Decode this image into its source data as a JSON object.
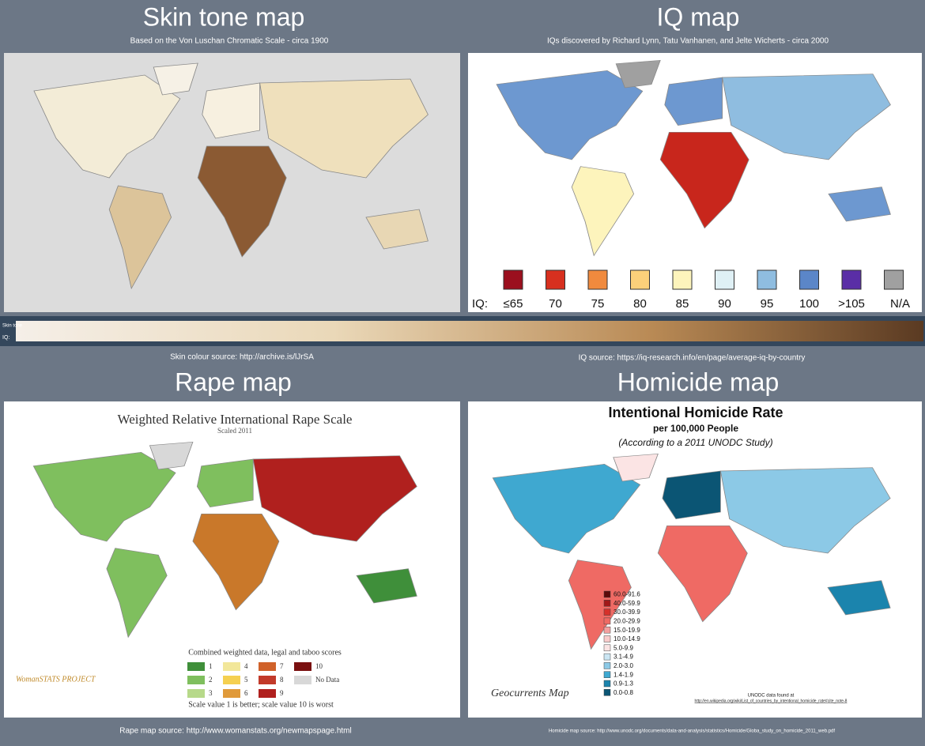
{
  "panels": [
    {
      "title": "Skin tone map",
      "subtitle": "Based on the Von Luschan Chromatic Scale - circa 1900",
      "source": "Skin colour source: http://archive.is/lJrSA"
    },
    {
      "title": "IQ map",
      "subtitle": "IQs discovered by Richard Lynn, Tatu Vanhanen, and Jelte Wicherts - circa 2000",
      "source": "IQ source:  https://iq-research.info/en/page/average-iq-by-country"
    },
    {
      "title": "Rape map",
      "source": "Rape map source: http://www.womanstats.org/newmapspage.html"
    },
    {
      "title": "Homicide map",
      "source": "Homicide map source: http://www.unodc.org/documents/data-and-analysis/statistics/Homicide/Globa_study_on_homicide_2011_web.pdf"
    }
  ],
  "strip": {
    "labels": [
      "Skin tone",
      "IQ:"
    ]
  },
  "iq_legend": {
    "prefix": "IQ:",
    "items": [
      {
        "label": "≤65",
        "color": "#9b0f1e"
      },
      {
        "label": "70",
        "color": "#d7301f"
      },
      {
        "label": "75",
        "color": "#f08a3e"
      },
      {
        "label": "80",
        "color": "#fbd07a"
      },
      {
        "label": "85",
        "color": "#fdf4bc"
      },
      {
        "label": "90",
        "color": "#dff0f5"
      },
      {
        "label": "95",
        "color": "#8fbde0"
      },
      {
        "label": "100",
        "color": "#5b86c8"
      },
      {
        "label": ">105",
        "color": "#5a2ea6"
      },
      {
        "label": "N/A",
        "color": "#a0a0a0"
      }
    ]
  },
  "rape_map": {
    "title": "Weighted Relative International Rape Scale",
    "subtitle": "Scaled 2011",
    "legend_title": "Combined weighted data, legal and taboo scores",
    "items": [
      {
        "label": "1",
        "color": "#3f8f3a"
      },
      {
        "label": "2",
        "color": "#7fbf5e"
      },
      {
        "label": "3",
        "color": "#b7d98a"
      },
      {
        "label": "4",
        "color": "#f2e79a"
      },
      {
        "label": "5",
        "color": "#f5d050"
      },
      {
        "label": "6",
        "color": "#e09a3a"
      },
      {
        "label": "7",
        "color": "#d0622a"
      },
      {
        "label": "8",
        "color": "#c23a2a"
      },
      {
        "label": "9",
        "color": "#b0201e"
      },
      {
        "label": "10",
        "color": "#7a1010"
      },
      {
        "label": "No Data",
        "color": "#d8d8d8"
      }
    ],
    "note": "Scale value 1 is better; scale value 10 is worst",
    "logo": "WomanSTATS PROJECT"
  },
  "homicide_map": {
    "title": "Intentional Homicide Rate",
    "subtitle": "per 100,000 People",
    "note": "(According to a 2011 UNODC Study)",
    "items": [
      {
        "label": "60.0-91.6",
        "color": "#5c0a0a"
      },
      {
        "label": "40.0-59.9",
        "color": "#a11818"
      },
      {
        "label": "30.0-39.9",
        "color": "#d6302a"
      },
      {
        "label": "20.0-29.9",
        "color": "#ef6a64"
      },
      {
        "label": "15.0-19.9",
        "color": "#f3a0a0"
      },
      {
        "label": "10.0-14.9",
        "color": "#f8cbcb"
      },
      {
        "label": "5.0-9.9",
        "color": "#fbe4e4"
      },
      {
        "label": "3.1-4.9",
        "color": "#cbe6f3"
      },
      {
        "label": "2.0-3.0",
        "color": "#8cc9e6"
      },
      {
        "label": "1.4-1.9",
        "color": "#3fa8d0"
      },
      {
        "label": "0.9-1.3",
        "color": "#1b84ad"
      },
      {
        "label": "0.0-0.8",
        "color": "#0b5574"
      }
    ],
    "credit": "Geocurrents Map",
    "source_note": "UNODC data found at",
    "source_url": "http://en.wikipedia.org/wiki/List_of_countries_by_intentional_homicide_rate#cite_note-8"
  }
}
